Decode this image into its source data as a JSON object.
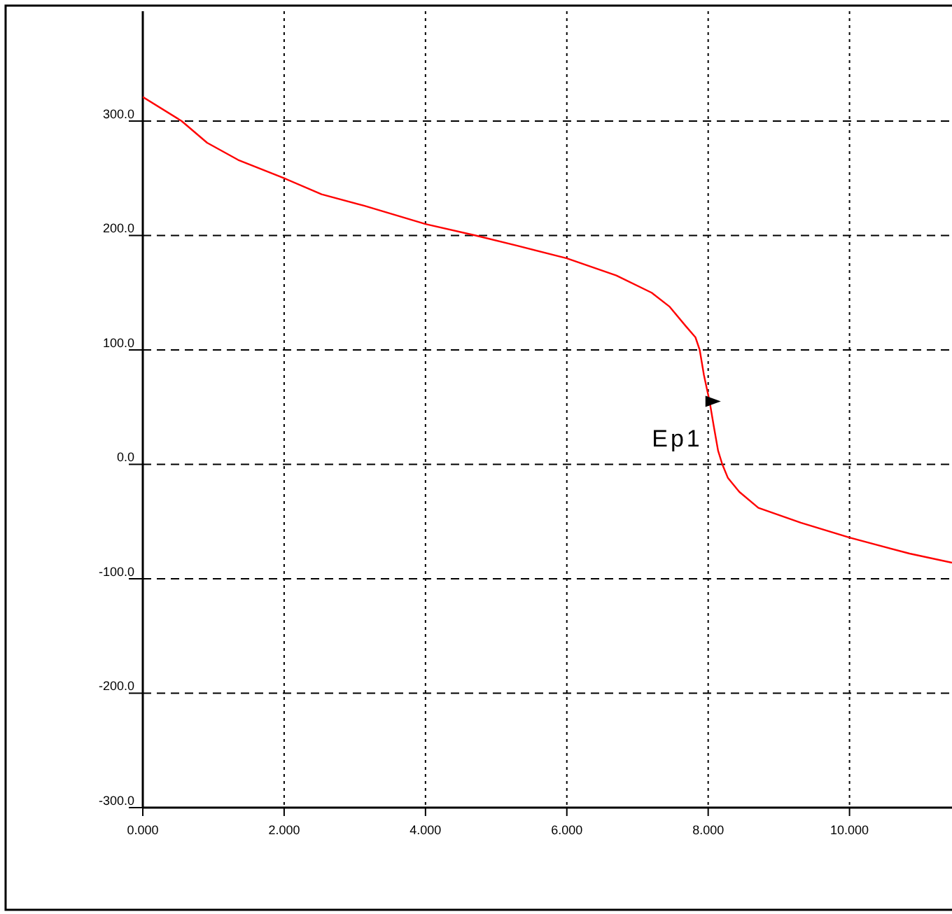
{
  "chart_data": {
    "type": "line",
    "x": [
      0,
      0.55,
      0.91,
      1.35,
      2.0,
      2.53,
      3.13,
      4.0,
      4.71,
      5.3,
      6.0,
      6.7,
      7.2,
      7.45,
      7.68,
      7.82,
      7.88,
      7.94,
      8.02,
      8.08,
      8.14,
      8.2,
      8.28,
      8.44,
      8.71,
      9.31,
      10.0,
      10.85,
      11.45
    ],
    "series": [
      {
        "color": "#ff0000",
        "values": [
          321,
          300,
          281,
          266,
          250,
          236,
          226,
          210,
          200,
          191,
          180,
          165,
          150,
          138,
          121,
          111,
          100,
          78,
          55,
          33,
          12,
          0,
          -12,
          -24,
          -38,
          -51,
          -64,
          -78,
          -86
        ]
      }
    ],
    "xlim": [
      0,
      11.45
    ],
    "ylim": [
      -300,
      396
    ],
    "xticks": [
      {
        "value": 0,
        "label": "0.000"
      },
      {
        "value": 2,
        "label": "2.000"
      },
      {
        "value": 4,
        "label": "4.000"
      },
      {
        "value": 6,
        "label": "6.000"
      },
      {
        "value": 8,
        "label": "8.000"
      },
      {
        "value": 10,
        "label": "10.000"
      }
    ],
    "yticks": [
      {
        "value": -300,
        "label": "-300.0"
      },
      {
        "value": -200,
        "label": "-200.0"
      },
      {
        "value": -100,
        "label": "-100.0"
      },
      {
        "value": 0,
        "label": "0.0"
      },
      {
        "value": 100,
        "label": "100.0"
      },
      {
        "value": 200,
        "label": "200.0"
      },
      {
        "value": 300,
        "label": "300.0"
      }
    ],
    "grid": true,
    "marker": "none",
    "line_style": "solid",
    "annotations": [
      {
        "text": "Ep1",
        "x": 8.08,
        "y": 55
      }
    ]
  }
}
